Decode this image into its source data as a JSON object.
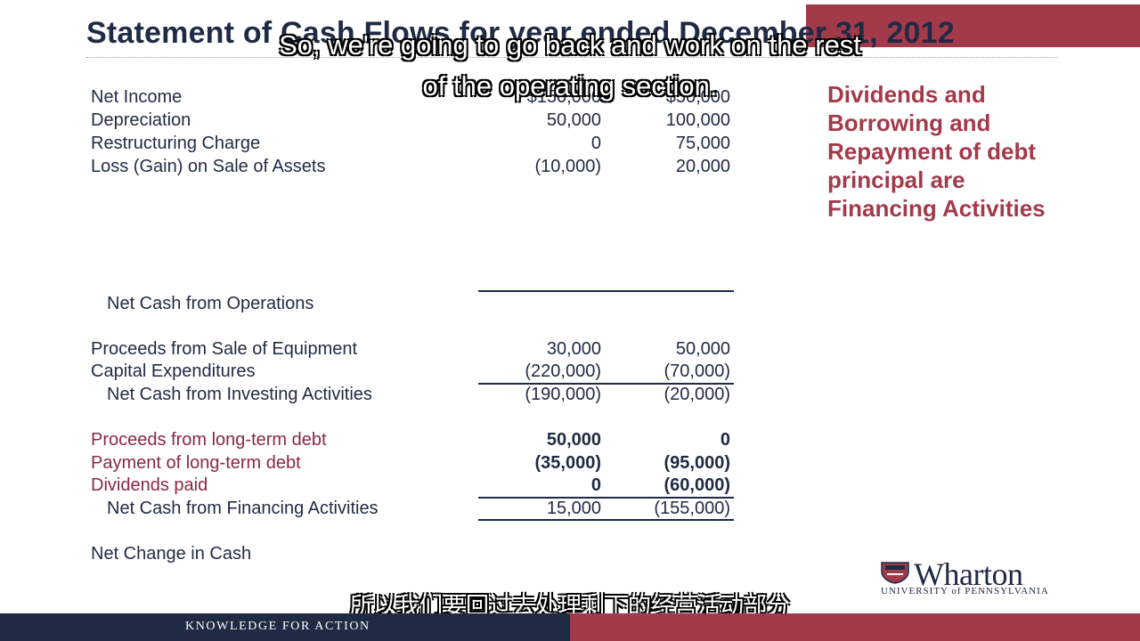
{
  "title": "Statement of Cash Flows for year ended December 31, 2012",
  "rows": [
    {
      "label": "Net Income",
      "v1": "$150,000",
      "v2": "$50,000"
    },
    {
      "label": "Depreciation",
      "v1": "50,000",
      "v2": "100,000"
    },
    {
      "label": "Restructuring Charge",
      "v1": "0",
      "v2": "75,000"
    },
    {
      "label": "Loss (Gain) on Sale of Assets",
      "v1": "(10,000)",
      "v2": "20,000"
    },
    {
      "label": "Net Cash from Operations",
      "v1": "",
      "v2": ""
    },
    {
      "label": "Proceeds from Sale of Equipment",
      "v1": "30,000",
      "v2": "50,000"
    },
    {
      "label": "Capital Expenditures",
      "v1": "(220,000)",
      "v2": "(70,000)"
    },
    {
      "label": "Net Cash from Investing Activities",
      "v1": "(190,000)",
      "v2": "(20,000)"
    },
    {
      "label": "Proceeds from long-term debt",
      "v1": "50,000",
      "v2": "0"
    },
    {
      "label": "Payment of long-term debt",
      "v1": "(35,000)",
      "v2": "(95,000)"
    },
    {
      "label": "Dividends paid",
      "v1": "0",
      "v2": "(60,000)"
    },
    {
      "label": "Net Cash from Financing Activities",
      "v1": "15,000",
      "v2": "(155,000)"
    },
    {
      "label": "Net Change in Cash",
      "v1": "",
      "v2": ""
    }
  ],
  "side_note": "Dividends and Borrowing and Repayment of debt principal are Financing Activities",
  "subtitle_en": "So, we're going to go back and work on the rest of the operating section.",
  "subtitle_zh": "所以我们要回过去处理剩下的经营活动部分",
  "logo": {
    "name": "Wharton",
    "university": "UNIVERSITY of PENNSYLVANIA",
    "icon": "shield-icon"
  },
  "footer": {
    "tagline": "KNOWLEDGE FOR ACTION"
  },
  "colors": {
    "navy": "#1f2a44",
    "accent": "#a33a4a"
  }
}
